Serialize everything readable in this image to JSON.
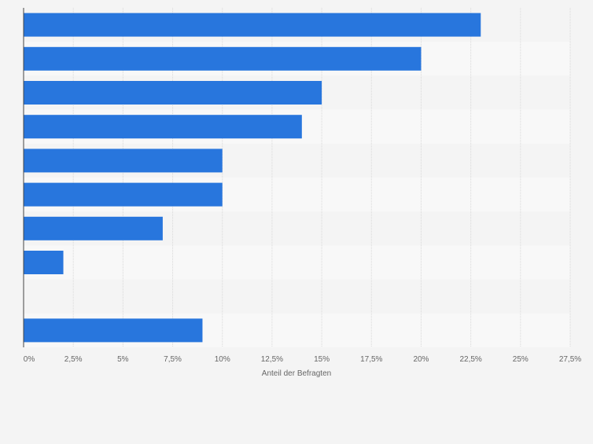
{
  "colors": {
    "bar": "#2876dd",
    "row_band_a": "#f4f4f4",
    "row_band_b": "#f8f8f8",
    "grid": "#d9d9d9",
    "axis_text": "#666666",
    "axis_line": "#444444"
  },
  "chart_data": {
    "type": "bar",
    "orientation": "horizontal",
    "categories": [
      "",
      "",
      "",
      "",
      "",
      "",
      "",
      "",
      "",
      ""
    ],
    "values": [
      23,
      20,
      15,
      14,
      10,
      10,
      7,
      2,
      0,
      9
    ],
    "title": "",
    "xlabel": "Anteil der Befragten",
    "ylabel": "",
    "xlim": [
      0,
      27.5
    ],
    "x_ticks": [
      "0%",
      "2,5%",
      "5%",
      "7,5%",
      "10%",
      "12,5%",
      "15%",
      "17,5%",
      "20%",
      "22,5%",
      "25%",
      "27,5%"
    ],
    "grid": true,
    "legend": "none"
  }
}
